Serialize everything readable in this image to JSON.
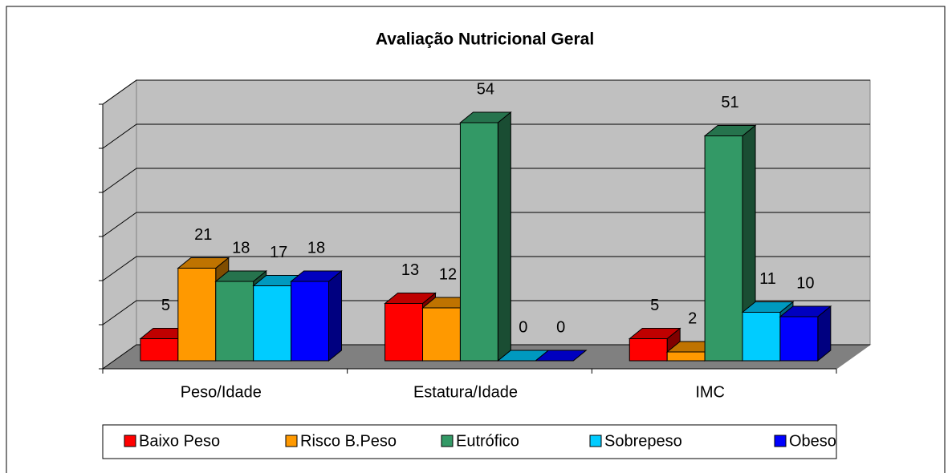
{
  "chart_data": {
    "type": "bar3d",
    "title": "Avaliação Nutricional Geral",
    "categories": [
      "Peso/Idade",
      "Estatura/Idade",
      "IMC"
    ],
    "series": [
      {
        "name": "Baixo Peso",
        "color": "#ff0000",
        "values": [
          5,
          13,
          5
        ]
      },
      {
        "name": "Risco B.Peso",
        "color": "#ff9900",
        "values": [
          21,
          12,
          2
        ]
      },
      {
        "name": "Eutrófico",
        "color": "#339966",
        "values": [
          18,
          54,
          51
        ]
      },
      {
        "name": "Sobrepeso",
        "color": "#00ccff",
        "values": [
          17,
          0,
          11
        ]
      },
      {
        "name": "Obeso",
        "color": "#0000ff",
        "values": [
          18,
          0,
          10
        ]
      }
    ],
    "ylim": [
      0,
      60
    ],
    "yticks": [
      0,
      10,
      20,
      30,
      40,
      50,
      60
    ],
    "grid": true,
    "legend": "bottom"
  }
}
